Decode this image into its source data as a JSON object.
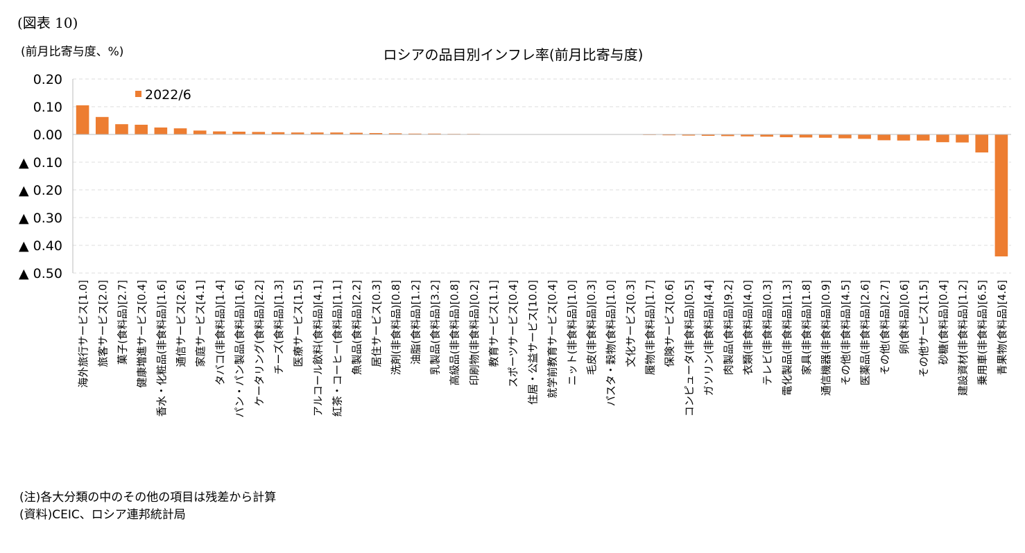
{
  "figure_label": "(図表 10)",
  "chart_data": {
    "type": "bar",
    "title": "ロシアの品目別インフレ率(前月比寄与度)",
    "ylabel": "(前月比寄与度、%)",
    "categories": [
      "海外旅行サービス[1.0]",
      "旅客サービス[2.0]",
      "菓子(食料品)[2.7]",
      "健康増進サービス[0.4]",
      "香水・化粧品(非食料品)[1.6]",
      "通信サービス[2.6]",
      "家庭サービス[4.1]",
      "タバコ(非食料品)[1.4]",
      "パン・パン製品(食料品)[1.6]",
      "ケータリング(食料品)[2.2]",
      "チーズ(食料品)[1.3]",
      "医療サービス[1.5]",
      "アルコール飲料(食料品)[4.1]",
      "紅茶・コーヒー(食料品)[1.1]",
      "魚製品(食料品)[2.2]",
      "居住サービス[0.3]",
      "洗剤(非食料品)[0.8]",
      "油脂(食料品)[1.2]",
      "乳製品(食料品)[3.2]",
      "高級品(非食料品)[0.8]",
      "印刷物(非食料品)[0.2]",
      "教育サービス[1.1]",
      "スポーツサービス[0.4]",
      "住居・公益サービス[10.0]",
      "就学前教育サービス[0.4]",
      "ニット(非食料品)[1.0]",
      "毛皮(非食料品)[0.3]",
      "パスタ・穀物(食料品)[1.0]",
      "文化サービス[0.3]",
      "履物(非食料品)[1.7]",
      "保険サービス[0.6]",
      "コンピュータ(非食料品)[0.5]",
      "ガソリン(非食料品)[4.4]",
      "肉製品(食料品)[9.2]",
      "衣類(非食料品)[4.0]",
      "テレビ(非食料品)[0.3]",
      "電化製品(非食料品)[1.3]",
      "家具(非食料品)[1.8]",
      "通信機器(非食料品)[0.9]",
      "その他(非食料品)[4.5]",
      "医薬品(非食料品)[2.6]",
      "その他(食料品)[2.7]",
      "卵(食料品)[0.6]",
      "その他サービス[1.5]",
      "砂糖(食料品)[0.4]",
      "建設資材(非食料品)[1.2]",
      "乗用車(非食料品)[6.5]",
      "青果物(食料品)[4.6]"
    ],
    "series": [
      {
        "name": "2022/6",
        "color": "#ed7d31",
        "values": [
          0.105,
          0.063,
          0.037,
          0.035,
          0.025,
          0.022,
          0.014,
          0.011,
          0.01,
          0.009,
          0.008,
          0.007,
          0.007,
          0.007,
          0.006,
          0.005,
          0.004,
          0.003,
          0.003,
          0.002,
          0.002,
          0.001,
          0.0005,
          0,
          0,
          0,
          0,
          0,
          -0.001,
          -0.002,
          -0.003,
          -0.004,
          -0.005,
          -0.006,
          -0.007,
          -0.008,
          -0.01,
          -0.011,
          -0.012,
          -0.014,
          -0.016,
          -0.021,
          -0.022,
          -0.022,
          -0.028,
          -0.029,
          -0.065,
          -0.44
        ]
      }
    ],
    "ylim": [
      -0.5,
      0.2
    ],
    "yticks": [
      {
        "value": 0.2,
        "label": "0.20"
      },
      {
        "value": 0.1,
        "label": "0.10"
      },
      {
        "value": 0,
        "label": "0.00"
      },
      {
        "value": -0.1,
        "label": "▲ 0.10"
      },
      {
        "value": -0.2,
        "label": "▲ 0.20"
      },
      {
        "value": -0.3,
        "label": "▲ 0.30"
      },
      {
        "value": -0.4,
        "label": "▲ 0.40"
      },
      {
        "value": -0.5,
        "label": "▲ 0.50"
      }
    ],
    "grid": true,
    "legend": "upper left"
  },
  "notes": [
    "(注)各大分類の中のその他の項目は残差から計算",
    "(資料)CEIC、ロシア連邦統計局"
  ]
}
